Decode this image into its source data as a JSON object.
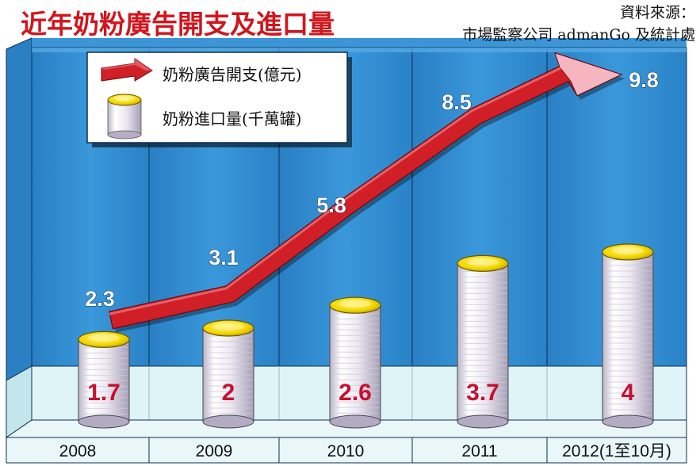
{
  "title": "近年奶粉廣告開支及進口量",
  "source": {
    "label": "資料來源：",
    "text": "市場監察公司 admanGo 及統計處"
  },
  "colors": {
    "background": "#ffffff",
    "panel_blue": "#2f8dd0",
    "floor": "#d9f1f3",
    "arrow_red": "#d11f27",
    "arrow_tip": "#f5b6c0",
    "can_body": "#eeeaf2",
    "can_top": "#f0d700",
    "can_value_red": "#c8102e",
    "title_red": "#d2151d"
  },
  "chart_data": {
    "type": "bar",
    "categories": [
      "2008",
      "2009",
      "2010",
      "2011",
      "2012(1至10月)"
    ],
    "series": [
      {
        "name": "奶粉廣告開支(億元)",
        "mark": "line-arrow",
        "values": [
          2.3,
          3.1,
          5.8,
          8.5,
          9.8
        ],
        "labels": [
          "2.3",
          "3.1",
          "5.8",
          "8.5",
          "9.8"
        ]
      },
      {
        "name": "奶粉進口量(千萬罐)",
        "mark": "can",
        "values": [
          1.7,
          2,
          2.6,
          3.7,
          4
        ],
        "labels": [
          "1.7",
          "2",
          "2.6",
          "3.7",
          "4"
        ]
      }
    ],
    "legend": {
      "position": "top-left",
      "items": [
        "奶粉廣告開支(億元)",
        "奶粉進口量(千萬罐)"
      ]
    },
    "grid": false
  }
}
